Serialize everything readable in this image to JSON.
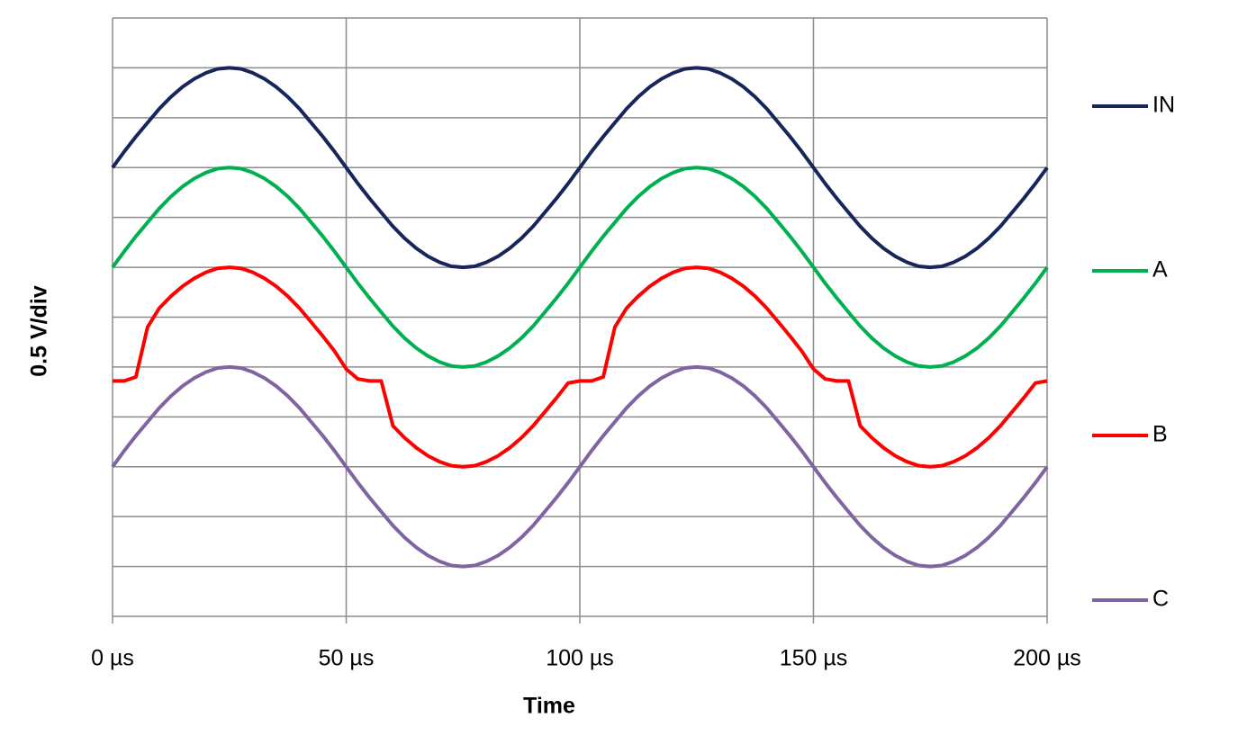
{
  "chart_data": {
    "type": "line",
    "x_label": "Time",
    "y_label": "0.5 V/div",
    "x": [
      0,
      2.5,
      5,
      7.5,
      10,
      12.5,
      15,
      17.5,
      20,
      22.5,
      25,
      27.5,
      30,
      32.5,
      35,
      37.5,
      40,
      42.5,
      45,
      47.5,
      50,
      52.5,
      55,
      57.5,
      60,
      62.5,
      65,
      67.5,
      70,
      72.5,
      75,
      77.5,
      80,
      82.5,
      85,
      87.5,
      90,
      92.5,
      95,
      97.5,
      100,
      102.5,
      105,
      107.5,
      110,
      112.5,
      115,
      117.5,
      120,
      122.5,
      125,
      127.5,
      130,
      132.5,
      135,
      137.5,
      140,
      142.5,
      145,
      147.5,
      150,
      152.5,
      155,
      157.5,
      160,
      162.5,
      165,
      167.5,
      170,
      172.5,
      175,
      177.5,
      180,
      182.5,
      185,
      187.5,
      190,
      192.5,
      195,
      197.5,
      200
    ],
    "xlim": [
      0,
      200
    ],
    "xticks": [
      {
        "value": 0,
        "label": "0 µs"
      },
      {
        "value": 50,
        "label": "50 µs"
      },
      {
        "value": 100,
        "label": "100 µs"
      },
      {
        "value": 150,
        "label": "150 µs"
      },
      {
        "value": 200,
        "label": "200 µs"
      }
    ],
    "ylim": [
      0,
      6
    ],
    "yticks": [
      0,
      0.5,
      1,
      1.5,
      2,
      2.5,
      3,
      3.5,
      4,
      4.5,
      5,
      5.5,
      6
    ],
    "ytick_labels": false,
    "grid": true,
    "legend": "right",
    "series": [
      {
        "name": "IN",
        "color": "#17255a",
        "values": [
          4.5,
          4.66,
          4.81,
          4.95,
          5.09,
          5.21,
          5.31,
          5.39,
          5.45,
          5.49,
          5.5,
          5.49,
          5.45,
          5.39,
          5.31,
          5.21,
          5.09,
          4.95,
          4.81,
          4.66,
          4.5,
          4.34,
          4.19,
          4.05,
          3.91,
          3.79,
          3.69,
          3.61,
          3.55,
          3.51,
          3.5,
          3.51,
          3.55,
          3.61,
          3.69,
          3.79,
          3.91,
          4.05,
          4.19,
          4.34,
          4.5,
          4.66,
          4.81,
          4.95,
          5.09,
          5.21,
          5.31,
          5.39,
          5.45,
          5.49,
          5.5,
          5.49,
          5.45,
          5.39,
          5.31,
          5.21,
          5.09,
          4.95,
          4.81,
          4.66,
          4.5,
          4.34,
          4.19,
          4.05,
          3.91,
          3.79,
          3.69,
          3.61,
          3.55,
          3.51,
          3.5,
          3.51,
          3.55,
          3.61,
          3.69,
          3.79,
          3.91,
          4.05,
          4.19,
          4.34,
          4.5
        ]
      },
      {
        "name": "A",
        "color": "#00b050",
        "values": [
          3.5,
          3.66,
          3.81,
          3.95,
          4.09,
          4.21,
          4.31,
          4.39,
          4.45,
          4.49,
          4.5,
          4.49,
          4.45,
          4.39,
          4.31,
          4.21,
          4.09,
          3.95,
          3.81,
          3.66,
          3.5,
          3.34,
          3.19,
          3.05,
          2.91,
          2.79,
          2.69,
          2.61,
          2.55,
          2.51,
          2.5,
          2.51,
          2.55,
          2.61,
          2.69,
          2.79,
          2.91,
          3.05,
          3.19,
          3.34,
          3.5,
          3.66,
          3.81,
          3.95,
          4.09,
          4.21,
          4.31,
          4.39,
          4.45,
          4.49,
          4.5,
          4.49,
          4.45,
          4.39,
          4.31,
          4.21,
          4.09,
          3.95,
          3.81,
          3.66,
          3.5,
          3.34,
          3.19,
          3.05,
          2.91,
          2.79,
          2.69,
          2.61,
          2.55,
          2.51,
          2.5,
          2.51,
          2.55,
          2.61,
          2.69,
          2.79,
          2.91,
          3.05,
          3.19,
          3.34,
          3.5
        ]
      },
      {
        "name": "B",
        "color": "#ff0000",
        "values": [
          2.36,
          2.36,
          2.4,
          2.9,
          3.09,
          3.21,
          3.31,
          3.39,
          3.45,
          3.49,
          3.5,
          3.49,
          3.45,
          3.39,
          3.31,
          3.21,
          3.09,
          2.95,
          2.81,
          2.66,
          2.48,
          2.38,
          2.36,
          2.36,
          1.91,
          1.79,
          1.69,
          1.61,
          1.55,
          1.51,
          1.5,
          1.51,
          1.55,
          1.61,
          1.69,
          1.79,
          1.91,
          2.05,
          2.19,
          2.34,
          2.36,
          2.36,
          2.4,
          2.9,
          3.09,
          3.21,
          3.31,
          3.39,
          3.45,
          3.49,
          3.5,
          3.49,
          3.45,
          3.39,
          3.31,
          3.21,
          3.09,
          2.95,
          2.81,
          2.66,
          2.48,
          2.38,
          2.36,
          2.36,
          1.91,
          1.79,
          1.69,
          1.61,
          1.55,
          1.51,
          1.5,
          1.51,
          1.55,
          1.61,
          1.69,
          1.79,
          1.91,
          2.05,
          2.19,
          2.34,
          2.36
        ]
      },
      {
        "name": "C",
        "color": "#8064a2",
        "values": [
          1.5,
          1.66,
          1.81,
          1.95,
          2.09,
          2.21,
          2.31,
          2.39,
          2.45,
          2.49,
          2.5,
          2.49,
          2.45,
          2.39,
          2.31,
          2.21,
          2.09,
          1.95,
          1.81,
          1.66,
          1.5,
          1.34,
          1.19,
          1.05,
          0.91,
          0.79,
          0.69,
          0.61,
          0.55,
          0.51,
          0.5,
          0.51,
          0.55,
          0.61,
          0.69,
          0.79,
          0.91,
          1.05,
          1.19,
          1.34,
          1.5,
          1.66,
          1.81,
          1.95,
          2.09,
          2.21,
          2.31,
          2.39,
          2.45,
          2.49,
          2.5,
          2.49,
          2.45,
          2.39,
          2.31,
          2.21,
          2.09,
          1.95,
          1.81,
          1.66,
          1.5,
          1.34,
          1.19,
          1.05,
          0.91,
          0.79,
          0.69,
          0.61,
          0.55,
          0.51,
          0.5,
          0.51,
          0.55,
          0.61,
          0.69,
          0.79,
          0.91,
          1.05,
          1.19,
          1.34,
          1.5
        ]
      }
    ]
  }
}
